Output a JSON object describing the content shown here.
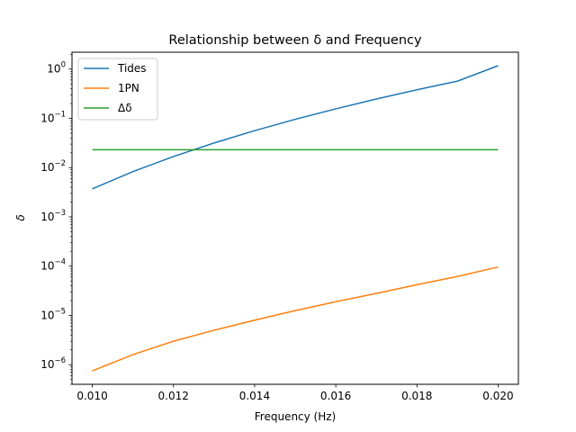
{
  "chart_data": {
    "type": "line",
    "title": "Relationship between δ and Frequency",
    "xlabel": "Frequency (Hz)",
    "ylabel": "δ",
    "xlim": [
      0.0095,
      0.0205
    ],
    "ylim": [
      4e-07,
      2.2
    ],
    "yscale": "log",
    "grid": false,
    "legend_loc": "upper left",
    "x_ticks": [
      0.01,
      0.012,
      0.014,
      0.016,
      0.018,
      0.02
    ],
    "x_tick_labels": [
      "0.010",
      "0.012",
      "0.014",
      "0.016",
      "0.018",
      "0.020"
    ],
    "y_ticks": [
      1e-06,
      1e-05,
      0.0001,
      0.001,
      0.01,
      0.1,
      1
    ],
    "y_tick_labels": [
      {
        "base": "10",
        "exp": "−6"
      },
      {
        "base": "10",
        "exp": "−5"
      },
      {
        "base": "10",
        "exp": "−4"
      },
      {
        "base": "10",
        "exp": "−3"
      },
      {
        "base": "10",
        "exp": "−2"
      },
      {
        "base": "10",
        "exp": "−1"
      },
      {
        "base": "10",
        "exp": "0"
      }
    ],
    "series": [
      {
        "name": "Tides",
        "color": "#1f77b4",
        "x": [
          0.01,
          0.011,
          0.012,
          0.013,
          0.014,
          0.015,
          0.016,
          0.017,
          0.018,
          0.019,
          0.02
        ],
        "y": [
          0.0037,
          0.0083,
          0.0168,
          0.0316,
          0.0562,
          0.0955,
          0.156,
          0.247,
          0.38,
          0.57,
          1.17
        ]
      },
      {
        "name": "1PN",
        "color": "#ff7f0e",
        "x": [
          0.01,
          0.011,
          0.012,
          0.013,
          0.014,
          0.015,
          0.016,
          0.017,
          0.018,
          0.019,
          0.02
        ],
        "y": [
          7.5e-07,
          1.6e-06,
          3e-06,
          5e-06,
          8e-06,
          1.25e-05,
          1.9e-05,
          2.8e-05,
          4.2e-05,
          6.2e-05,
          9.6e-05
        ]
      },
      {
        "name": "Δδ",
        "color": "#2ca02c",
        "x": [
          0.01,
          0.02
        ],
        "y": [
          0.023,
          0.023
        ]
      }
    ]
  }
}
